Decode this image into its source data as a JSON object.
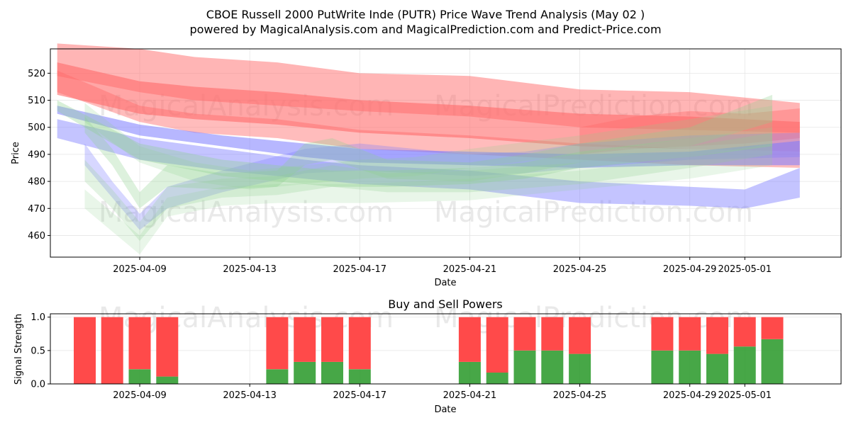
{
  "colors": {
    "buy": "#2e9b2e",
    "sell": "#ff4a4a",
    "band_red": "#ff6b6b",
    "band_blue": "#7c7cff",
    "band_green": "#8fd18f",
    "watermark": "#b4b4b4"
  },
  "watermarks": [
    "MagicalAnalysis.com",
    "MagicalPrediction.com"
  ],
  "chart_data": [
    {
      "type": "area",
      "title": "CBOE Russell 2000 PutWrite Inde (PUTR) Price Wave Trend Analysis (May 02 )",
      "subtitle": "powered by MagicalAnalysis.com and MagicalPrediction.com and Predict-Price.com",
      "xlabel": "Date",
      "ylabel": "Price",
      "xlim": [
        "2025-04-05T18:00",
        "2025-05-04T12:00"
      ],
      "ylim": [
        452,
        529
      ],
      "grid": true,
      "x_tick_labels": [
        "2025-04-09",
        "2025-04-13",
        "2025-04-17",
        "2025-04-21",
        "2025-04-25",
        "2025-04-29",
        "2025-05-01"
      ],
      "y_tick_labels": [
        "460",
        "470",
        "480",
        "490",
        "500",
        "510",
        "520"
      ],
      "bands": [
        {
          "color": "red",
          "opacity": 0.5,
          "points": [
            [
              "2025-04-06",
              519,
              531
            ],
            [
              "2025-04-09",
              513,
              529
            ],
            [
              "2025-04-11",
              510,
              526
            ],
            [
              "2025-04-14",
              508,
              524
            ],
            [
              "2025-04-17",
              506,
              520
            ],
            [
              "2025-04-21",
              504,
              519
            ],
            [
              "2025-04-25",
              500,
              514
            ],
            [
              "2025-04-29",
              499,
              513
            ],
            [
              "2025-05-03",
              498,
              509
            ]
          ]
        },
        {
          "color": "red",
          "opacity": 0.6,
          "points": [
            [
              "2025-04-06",
              512,
              524
            ],
            [
              "2025-04-09",
              505,
              517
            ],
            [
              "2025-04-11",
              503,
              515
            ],
            [
              "2025-04-14",
              501,
              513
            ],
            [
              "2025-04-17",
              498,
              510
            ],
            [
              "2025-04-21",
              496,
              508
            ],
            [
              "2025-04-25",
              493,
              505
            ],
            [
              "2025-04-29",
              492,
              504
            ],
            [
              "2025-05-03",
              491,
              502
            ]
          ]
        },
        {
          "color": "red",
          "opacity": 0.45,
          "points": [
            [
              "2025-04-06",
              513,
              521
            ],
            [
              "2025-04-09",
              502,
              508
            ],
            [
              "2025-04-11",
              498,
              505
            ],
            [
              "2025-04-14",
              496,
              503
            ],
            [
              "2025-04-17",
              492,
              499
            ],
            [
              "2025-04-21",
              490,
              497
            ],
            [
              "2025-04-25",
              488,
              494
            ],
            [
              "2025-04-29",
              486,
              492
            ],
            [
              "2025-05-03",
              485,
              491
            ]
          ]
        },
        {
          "color": "red",
          "opacity": 0.4,
          "points": [
            [
              "2025-04-25",
              490,
              500
            ],
            [
              "2025-04-27",
              492,
              504
            ],
            [
              "2025-04-29",
              493,
              506
            ],
            [
              "2025-05-01",
              494,
              505
            ],
            [
              "2025-05-03",
              496,
              507
            ]
          ]
        },
        {
          "color": "blue",
          "opacity": 0.55,
          "points": [
            [
              "2025-04-06",
              505,
              508
            ],
            [
              "2025-04-09",
              497,
              501
            ],
            [
              "2025-04-12",
              493,
              497
            ],
            [
              "2025-04-15",
              489,
              494
            ],
            [
              "2025-04-17",
              487,
              492
            ],
            [
              "2025-04-21",
              486,
              491
            ],
            [
              "2025-04-25",
              485,
              490
            ],
            [
              "2025-04-29",
              486,
              491
            ],
            [
              "2025-05-03",
              486,
              495
            ]
          ]
        },
        {
          "color": "blue",
          "opacity": 0.45,
          "points": [
            [
              "2025-04-06",
              496,
              503
            ],
            [
              "2025-04-09",
              488,
              496
            ],
            [
              "2025-04-12",
              484,
              492
            ],
            [
              "2025-04-15",
              481,
              488
            ],
            [
              "2025-04-17",
              479,
              486
            ],
            [
              "2025-04-21",
              477,
              484
            ],
            [
              "2025-04-25",
              472,
              480
            ],
            [
              "2025-04-29",
              471,
              478
            ],
            [
              "2025-05-01",
              470,
              477
            ],
            [
              "2025-05-03",
              474,
              485
            ]
          ]
        },
        {
          "color": "blue",
          "opacity": 0.3,
          "points": [
            [
              "2025-04-07",
              486,
              494
            ],
            [
              "2025-04-08",
              474,
              480
            ],
            [
              "2025-04-09",
              462,
              468
            ],
            [
              "2025-04-10",
              470,
              478
            ],
            [
              "2025-04-12",
              476,
              484
            ],
            [
              "2025-04-15",
              483,
              492
            ],
            [
              "2025-04-17",
              484,
              494
            ],
            [
              "2025-04-21",
              482,
              490
            ],
            [
              "2025-04-23",
              483,
              491
            ],
            [
              "2025-04-25",
              485,
              494
            ],
            [
              "2025-04-29",
              488,
              497
            ],
            [
              "2025-05-03",
              489,
              498
            ]
          ]
        },
        {
          "color": "green",
          "opacity": 0.35,
          "points": [
            [
              "2025-04-06",
              506,
              510
            ],
            [
              "2025-04-09",
              488,
              494
            ],
            [
              "2025-04-10",
              486,
              492
            ],
            [
              "2025-04-12",
              482,
              488
            ],
            [
              "2025-04-14",
              480,
              486
            ],
            [
              "2025-04-16",
              478,
              484
            ],
            [
              "2025-04-18",
              478,
              484
            ],
            [
              "2025-04-21",
              479,
              485
            ],
            [
              "2025-04-23",
              481,
              487
            ],
            [
              "2025-04-25",
              485,
              491
            ],
            [
              "2025-04-29",
              489,
              496
            ],
            [
              "2025-05-02",
              493,
              500
            ]
          ]
        },
        {
          "color": "green",
          "opacity": 0.3,
          "points": [
            [
              "2025-04-07",
              498,
              504
            ],
            [
              "2025-04-08",
              486,
              492
            ],
            [
              "2025-04-09",
              470,
              476
            ],
            [
              "2025-04-10",
              478,
              486
            ],
            [
              "2025-04-12",
              477,
              483
            ],
            [
              "2025-04-14",
              478,
              484
            ],
            [
              "2025-04-15",
              486,
              494
            ],
            [
              "2025-04-16",
              488,
              496
            ],
            [
              "2025-04-18",
              481,
              488
            ],
            [
              "2025-04-21",
              480,
              487
            ],
            [
              "2025-04-23",
              483,
              490
            ],
            [
              "2025-04-25",
              487,
              494
            ],
            [
              "2025-04-29",
              493,
              500
            ],
            [
              "2025-05-02",
              502,
              512
            ]
          ]
        },
        {
          "color": "green",
          "opacity": 0.25,
          "points": [
            [
              "2025-04-07",
              480,
              488
            ],
            [
              "2025-04-08",
              470,
              477
            ],
            [
              "2025-04-09",
              458,
              465
            ],
            [
              "2025-04-10",
              470,
              478
            ],
            [
              "2025-04-12",
              474,
              481
            ],
            [
              "2025-04-14",
              475,
              482
            ],
            [
              "2025-04-16",
              478,
              486
            ],
            [
              "2025-04-18",
              476,
              483
            ],
            [
              "2025-04-21",
              476,
              484
            ],
            [
              "2025-04-25",
              479,
              487
            ],
            [
              "2025-04-29",
              485,
              493
            ],
            [
              "2025-05-02",
              490,
              498
            ]
          ]
        },
        {
          "color": "green",
          "opacity": 0.2,
          "points": [
            [
              "2025-04-07",
              470,
              477
            ],
            [
              "2025-04-09",
              453,
              460
            ],
            [
              "2025-04-10",
              467,
              474
            ],
            [
              "2025-04-12",
              471,
              478
            ],
            [
              "2025-04-14",
              472,
              479
            ],
            [
              "2025-04-17",
              472,
              479
            ],
            [
              "2025-04-21",
              473,
              481
            ],
            [
              "2025-04-25",
              477,
              484
            ],
            [
              "2025-04-29",
              481,
              489
            ],
            [
              "2025-05-02",
              486,
              494
            ]
          ]
        },
        {
          "color": "green",
          "opacity": 0.22,
          "points": [
            [
              "2025-04-07",
              502,
              509
            ],
            [
              "2025-04-09",
              487,
              493
            ],
            [
              "2025-04-11",
              480,
              487
            ],
            [
              "2025-04-13",
              477,
              484
            ],
            [
              "2025-04-15",
              479,
              486
            ],
            [
              "2025-04-17",
              481,
              488
            ],
            [
              "2025-04-19",
              482,
              489
            ],
            [
              "2025-04-21",
              485,
              492
            ],
            [
              "2025-04-25",
              490,
              497
            ],
            [
              "2025-04-29",
              496,
              503
            ],
            [
              "2025-05-02",
              500,
              508
            ]
          ]
        }
      ]
    },
    {
      "type": "bar",
      "title": "Buy and Sell Powers",
      "xlabel": "Date",
      "ylabel": "Signal Strength",
      "xlim": [
        "2025-04-05T18:00",
        "2025-05-04T12:00"
      ],
      "ylim": [
        0,
        1.05
      ],
      "grid": true,
      "x_tick_labels": [
        "2025-04-09",
        "2025-04-13",
        "2025-04-17",
        "2025-04-21",
        "2025-04-25",
        "2025-04-29",
        "2025-05-01"
      ],
      "y_tick_labels": [
        "0.0",
        "0.5",
        "1.0"
      ],
      "bars": [
        {
          "date": "2025-04-07",
          "buy": 0.0,
          "sell": 1.0
        },
        {
          "date": "2025-04-08",
          "buy": 0.0,
          "sell": 1.0
        },
        {
          "date": "2025-04-09",
          "buy": 0.22,
          "sell": 0.78
        },
        {
          "date": "2025-04-10",
          "buy": 0.11,
          "sell": 0.89
        },
        {
          "date": "2025-04-14",
          "buy": 0.22,
          "sell": 0.78
        },
        {
          "date": "2025-04-15",
          "buy": 0.33,
          "sell": 0.67
        },
        {
          "date": "2025-04-16",
          "buy": 0.33,
          "sell": 0.67
        },
        {
          "date": "2025-04-17",
          "buy": 0.22,
          "sell": 0.78
        },
        {
          "date": "2025-04-21",
          "buy": 0.33,
          "sell": 0.67
        },
        {
          "date": "2025-04-22",
          "buy": 0.17,
          "sell": 0.83
        },
        {
          "date": "2025-04-23",
          "buy": 0.5,
          "sell": 0.5
        },
        {
          "date": "2025-04-24",
          "buy": 0.5,
          "sell": 0.5
        },
        {
          "date": "2025-04-25",
          "buy": 0.45,
          "sell": 0.55
        },
        {
          "date": "2025-04-28",
          "buy": 0.5,
          "sell": 0.5
        },
        {
          "date": "2025-04-29",
          "buy": 0.5,
          "sell": 0.5
        },
        {
          "date": "2025-04-30",
          "buy": 0.45,
          "sell": 0.55
        },
        {
          "date": "2025-05-01",
          "buy": 0.56,
          "sell": 0.44
        },
        {
          "date": "2025-05-02",
          "buy": 0.67,
          "sell": 0.33
        }
      ]
    }
  ]
}
